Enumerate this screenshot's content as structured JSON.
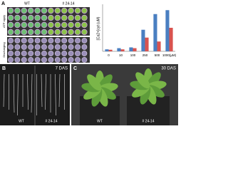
{
  "panel_a": {
    "letter": "A",
    "genotypes": [
      "WT",
      "# 24-14"
    ],
    "rows": [
      "ATP apply",
      "Discharging"
    ]
  },
  "chart_data": {
    "type": "bar",
    "y_label": "[Ca2+]cyt (uM)",
    "categories": [
      "0",
      "10",
      "100",
      "250",
      "500",
      "1000(µM)"
    ],
    "series": [
      {
        "color": "#4a7fc1",
        "values": [
          0.05,
          0.08,
          0.1,
          0.55,
          0.95,
          1.05
        ]
      },
      {
        "color": "#d9534f",
        "values": [
          0.04,
          0.05,
          0.08,
          0.35,
          0.25,
          0.6
        ]
      }
    ],
    "ylim": [
      0,
      1.2
    ]
  },
  "panel_b": {
    "letter": "B",
    "stage": "7 DAS",
    "labels": [
      "WT",
      "# 24-14"
    ]
  },
  "panel_c": {
    "letter": "C",
    "stage": "30 DAS",
    "labels": [
      "WT",
      "# 24-14"
    ]
  }
}
